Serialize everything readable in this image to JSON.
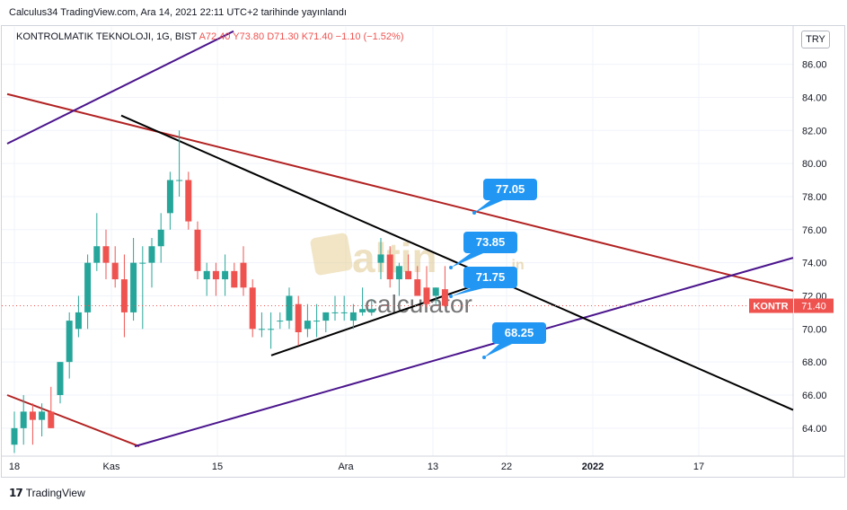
{
  "header": {
    "published": "Calculus34 TradingView.com, Ara 14, 2021 22:11 UTC+2 tarihinde yayınlandı"
  },
  "symbol": {
    "name": "KONTROLMATIK TEKNOLOJI, 1G, BIST",
    "ohlc": "A72.40 Y73.80 D71.30 K71.40 −1.10 (−1.52%)"
  },
  "currency": "TRY",
  "footer": {
    "brand": "TradingView"
  },
  "watermark": {
    "word1": "altin",
    "suffix": ".in",
    "word2": "calculator"
  },
  "colors": {
    "up": "#26a69a",
    "down": "#ef5350",
    "callout": "#2196f3",
    "red_line": "#b22222",
    "purple_line": "#4a148c",
    "black_line": "#000000"
  },
  "chart_data": {
    "type": "candlestick",
    "y_range": [
      62.5,
      87.5
    ],
    "y_ticks": [
      "86.00",
      "84.00",
      "82.00",
      "80.00",
      "78.00",
      "76.00",
      "74.00",
      "72.00",
      "70.00",
      "68.00",
      "66.00",
      "64.00"
    ],
    "x_ticks": [
      "18",
      "Kas",
      "15",
      "Ara",
      "13",
      "22",
      "2022",
      "17"
    ],
    "last_price": {
      "symbol": "KONTR",
      "value": "71.40"
    },
    "callouts": [
      "77.05",
      "73.85",
      "71.75",
      "68.25"
    ],
    "candles": [
      [
        63.0,
        65.0,
        62.5,
        64.0
      ],
      [
        64.0,
        66.0,
        63.0,
        65.0
      ],
      [
        65.0,
        65.5,
        63.0,
        64.5
      ],
      [
        64.5,
        65.5,
        63.5,
        65.0
      ],
      [
        65.0,
        66.5,
        64.0,
        64.0
      ],
      [
        66.0,
        68.0,
        65.5,
        68.0
      ],
      [
        68.0,
        71.0,
        67.0,
        70.5
      ],
      [
        70.0,
        72.0,
        69.5,
        71.0
      ],
      [
        71.0,
        74.5,
        70.0,
        74.0
      ],
      [
        74.0,
        77.0,
        73.5,
        75.0
      ],
      [
        75.0,
        76.0,
        73.0,
        74.0
      ],
      [
        74.0,
        75.0,
        72.5,
        73.0
      ],
      [
        73.0,
        74.5,
        69.5,
        71.0
      ],
      [
        71.0,
        75.5,
        70.5,
        74.0
      ],
      [
        74.0,
        75.0,
        70.0,
        74.0
      ],
      [
        74.0,
        75.5,
        72.5,
        75.0
      ],
      [
        75.0,
        77.0,
        74.0,
        76.0
      ],
      [
        77.0,
        79.5,
        76.0,
        79.0
      ],
      [
        79.0,
        82.0,
        78.0,
        79.0
      ],
      [
        79.0,
        79.5,
        76.0,
        76.5
      ],
      [
        76.0,
        76.5,
        73.0,
        73.5
      ],
      [
        73.0,
        74.0,
        72.0,
        73.5
      ],
      [
        73.5,
        74.0,
        72.0,
        73.0
      ],
      [
        73.0,
        74.5,
        72.0,
        73.5
      ],
      [
        73.5,
        74.0,
        72.5,
        72.5
      ],
      [
        74.0,
        75.0,
        72.0,
        72.5
      ],
      [
        72.5,
        73.0,
        69.5,
        70.0
      ],
      [
        70.0,
        71.0,
        69.5,
        70.0
      ],
      [
        70.0,
        71.0,
        68.8,
        70.0
      ],
      [
        70.5,
        71.0,
        70.0,
        70.5
      ],
      [
        70.5,
        72.5,
        70.0,
        72.0
      ],
      [
        71.5,
        72.0,
        69.0,
        69.8
      ],
      [
        70.0,
        71.5,
        69.5,
        70.5
      ],
      [
        70.5,
        71.5,
        69.5,
        70.5
      ],
      [
        70.5,
        71.0,
        69.8,
        71.0
      ],
      [
        71.0,
        72.0,
        70.5,
        71.0
      ],
      [
        71.0,
        72.0,
        70.5,
        71.0
      ],
      [
        70.5,
        71.5,
        70.0,
        71.0
      ],
      [
        71.0,
        72.5,
        70.8,
        71.2
      ],
      [
        71.0,
        71.8,
        70.8,
        71.2
      ],
      [
        74.0,
        75.5,
        73.0,
        74.5
      ],
      [
        74.5,
        75.0,
        72.5,
        73.0
      ],
      [
        73.0,
        74.0,
        72.0,
        73.8
      ],
      [
        73.5,
        74.5,
        73.0,
        73.0
      ],
      [
        73.0,
        73.8,
        72.0,
        72.0
      ],
      [
        72.5,
        73.8,
        71.3,
        71.5
      ],
      [
        72.0,
        72.5,
        71.5,
        72.5
      ],
      [
        72.4,
        73.8,
        71.3,
        71.4
      ]
    ]
  }
}
